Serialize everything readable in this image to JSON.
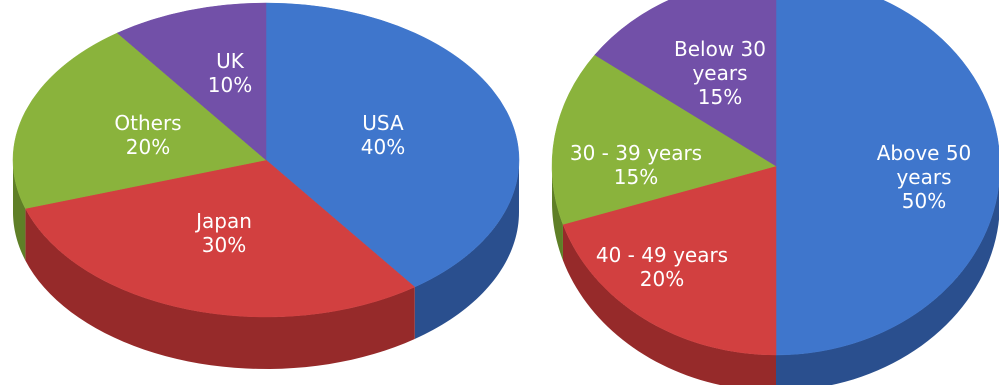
{
  "chart_data": [
    {
      "type": "pie",
      "title": "",
      "slices": [
        {
          "label": "USA",
          "value": 40,
          "display": "40%",
          "color": "#3f76cc",
          "side_color": "#2a4f8e"
        },
        {
          "label": "Japan",
          "value": 30,
          "display": "30%",
          "color": "#d24040",
          "side_color": "#962a2a"
        },
        {
          "label": "Others",
          "value": 20,
          "display": "20%",
          "color": "#8ab33c",
          "side_color": "#5f7f27"
        },
        {
          "label": "UK",
          "value": 10,
          "display": "10%",
          "color": "#7250a8",
          "side_color": "#4d3576"
        }
      ]
    },
    {
      "type": "pie",
      "title": "",
      "slices": [
        {
          "label": "Above 50 years",
          "value": 50,
          "display": "50%",
          "color": "#3f76cc",
          "side_color": "#2a4f8e"
        },
        {
          "label": "40 - 49 years",
          "value": 20,
          "display": "20%",
          "color": "#d24040",
          "side_color": "#962a2a"
        },
        {
          "label": "30 - 39 years",
          "value": 15,
          "display": "15%",
          "color": "#8ab33c",
          "side_color": "#5f7f27"
        },
        {
          "label": "Below 30 years",
          "value": 15,
          "display": "15%",
          "color": "#7250a8",
          "side_color": "#4d3576"
        }
      ]
    }
  ]
}
